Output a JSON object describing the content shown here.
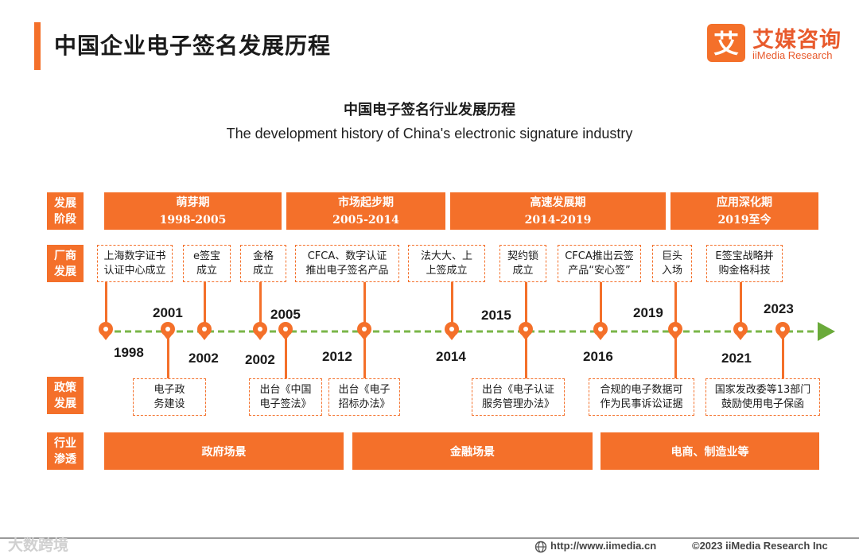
{
  "header": {
    "title": "中国企业电子签名发展历程",
    "logo_cn": "艾媒咨询",
    "logo_en": "iiMedia Research",
    "logo_glyph": "艾"
  },
  "subtitle": {
    "cn": "中国电子签名行业发展历程",
    "en": "The development history of China's electronic signature industry"
  },
  "row_labels": {
    "stage": [
      "发展",
      "阶段"
    ],
    "company": [
      "厂商",
      "发展"
    ],
    "policy": [
      "政策",
      "发展"
    ],
    "industry": [
      "行业",
      "渗透"
    ]
  },
  "stages": [
    {
      "name": "萌芽期",
      "period": "1998-2005"
    },
    {
      "name": "市场起步期",
      "period": "2005-2014"
    },
    {
      "name": "高速发展期",
      "period": "2014-2019"
    },
    {
      "name": "应用深化期",
      "period": "2019至今"
    }
  ],
  "company_events": [
    {
      "lines": [
        "上海数字证书",
        "认证中心成立"
      ],
      "year": "1998"
    },
    {
      "lines": [
        "e签宝",
        "成立"
      ],
      "year": "2002"
    },
    {
      "lines": [
        "金格",
        "成立"
      ],
      "year": "2002"
    },
    {
      "lines": [
        "CFCA、数字认证",
        "推出电子签名产品"
      ],
      "year": "2012"
    },
    {
      "lines": [
        "法大大、上",
        "上签成立"
      ],
      "year": "2014"
    },
    {
      "lines": [
        "契约锁",
        "成立"
      ],
      "year": "2015"
    },
    {
      "lines": [
        "CFCA推出云签",
        "产品“安心签”"
      ],
      "year": "2016"
    },
    {
      "lines": [
        "巨头",
        "入场"
      ],
      "year": "2019"
    },
    {
      "lines": [
        "E签宝战略并",
        "购金格科技"
      ],
      "year": "2021"
    }
  ],
  "policy_events": [
    {
      "lines": [
        "电子政",
        "务建设"
      ],
      "year": "2001"
    },
    {
      "lines": [
        "出台《中国",
        "电子签法》"
      ],
      "year": "2005"
    },
    {
      "lines": [
        "出台《电子",
        "招标办法》"
      ],
      "year": "2012"
    },
    {
      "lines": [
        "出台《电子认证",
        "服务管理办法》"
      ],
      "year": "2015"
    },
    {
      "lines": [
        "合规的电子数据可",
        "作为民事诉讼证据"
      ],
      "year": "2019"
    },
    {
      "lines": [
        "国家发改委等13部门",
        "鼓励使用电子保函"
      ],
      "year": "2023"
    }
  ],
  "years": [
    "1998",
    "2001",
    "2002",
    "2002",
    "2005",
    "2012",
    "2014",
    "2015",
    "2016",
    "2019",
    "2021",
    "2023"
  ],
  "industries": [
    "政府场景",
    "金融场景",
    "电商、制造业等"
  ],
  "footer": {
    "url": "http://www.iimedia.cn",
    "copyright": "©2023  iiMedia Research  Inc",
    "watermark": "大数跨境"
  },
  "colors": {
    "accent": "#f4702a",
    "timeline_dash": "#7ab648",
    "arrow": "#6aaa3a"
  }
}
